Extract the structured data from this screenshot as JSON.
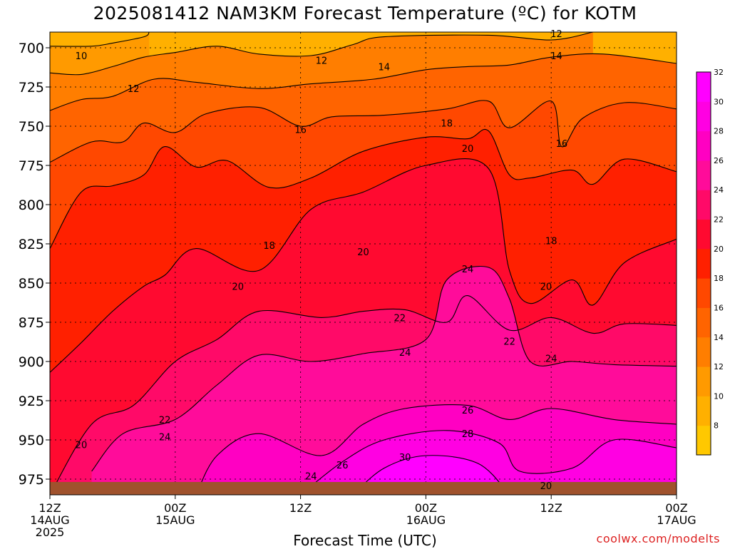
{
  "title": "2025081412 NAM3KM Forecast Temperature (ºC) for KOTM",
  "credit": "coolwx.com/modelts",
  "chart_data": {
    "type": "contour",
    "xlabel": "Forecast Time (UTC)",
    "ylabel": "",
    "ylim": [
      985,
      690
    ],
    "y_ticks": [
      {
        "value": 700,
        "label": "700"
      },
      {
        "value": 725,
        "label": "725"
      },
      {
        "value": 750,
        "label": "750"
      },
      {
        "value": 775,
        "label": "775"
      },
      {
        "value": 800,
        "label": "800"
      },
      {
        "value": 825,
        "label": "825"
      },
      {
        "value": 850,
        "label": "850"
      },
      {
        "value": 875,
        "label": "875"
      },
      {
        "value": 900,
        "label": "900"
      },
      {
        "value": 925,
        "label": "925"
      },
      {
        "value": 950,
        "label": "950"
      },
      {
        "value": 975,
        "label": "975"
      }
    ],
    "xlim": [
      0,
      60
    ],
    "x_ticks": [
      {
        "hour": 0,
        "lines": [
          "12Z",
          "14AUG",
          "2025"
        ]
      },
      {
        "hour": 12,
        "lines": [
          "00Z",
          "15AUG"
        ]
      },
      {
        "hour": 24,
        "lines": [
          "12Z"
        ]
      },
      {
        "hour": 36,
        "lines": [
          "00Z",
          "16AUG"
        ]
      },
      {
        "hour": 48,
        "lines": [
          "12Z"
        ]
      },
      {
        "hour": 60,
        "lines": [
          "00Z",
          "17AUG"
        ]
      }
    ],
    "levels": [
      8,
      10,
      12,
      14,
      16,
      18,
      20,
      22,
      24,
      26,
      28,
      30,
      32
    ],
    "colorbar": [
      {
        "value": 6,
        "color": "#ffc800"
      },
      {
        "value": 8,
        "color": "#ffb000"
      },
      {
        "value": 10,
        "color": "#ff9a00"
      },
      {
        "value": 12,
        "color": "#ff7e00"
      },
      {
        "value": 14,
        "color": "#ff6400"
      },
      {
        "value": 16,
        "color": "#ff4800"
      },
      {
        "value": 18,
        "color": "#ff2000"
      },
      {
        "value": 20,
        "color": "#ff0a30"
      },
      {
        "value": 22,
        "color": "#ff0a68"
      },
      {
        "value": 24,
        "color": "#ff0c9a"
      },
      {
        "value": 26,
        "color": "#ff00c2"
      },
      {
        "value": 28,
        "color": "#ff00e2"
      },
      {
        "value": 30,
        "color": "#ff00ff"
      }
    ],
    "colorbar_labels": [
      "8",
      "10",
      "12",
      "14",
      "16",
      "18",
      "20",
      "22",
      "24",
      "26",
      "28",
      "30",
      "32"
    ],
    "isotherms": [
      {
        "level": 10,
        "points": [
          [
            0,
            699
          ],
          [
            4,
            699
          ],
          [
            6,
            697
          ],
          [
            9,
            693
          ],
          [
            9.5,
            690
          ]
        ]
      },
      {
        "level": 12,
        "points": [
          [
            0,
            716
          ],
          [
            3,
            717
          ],
          [
            6,
            712
          ],
          [
            9,
            706
          ],
          [
            12,
            703
          ],
          [
            16,
            699
          ],
          [
            20,
            704
          ],
          [
            25,
            705
          ],
          [
            29,
            698
          ],
          [
            32,
            693
          ],
          [
            42,
            692
          ],
          [
            48,
            695
          ],
          [
            52,
            690
          ]
        ]
      },
      {
        "level": 14,
        "points": [
          [
            0,
            740
          ],
          [
            3,
            733
          ],
          [
            6,
            731
          ],
          [
            10,
            720
          ],
          [
            14,
            722
          ],
          [
            20,
            726
          ],
          [
            25,
            723
          ],
          [
            31,
            720
          ],
          [
            36,
            714
          ],
          [
            40,
            712
          ],
          [
            44,
            711
          ],
          [
            48,
            706
          ],
          [
            53,
            704
          ],
          [
            60,
            710
          ]
        ]
      },
      {
        "level": 16,
        "points": [
          [
            0,
            773
          ],
          [
            4,
            760
          ],
          [
            7,
            760
          ],
          [
            9,
            748
          ],
          [
            12,
            754
          ],
          [
            15,
            742
          ],
          [
            20,
            738
          ],
          [
            24,
            750
          ],
          [
            27,
            744
          ],
          [
            32,
            743
          ],
          [
            38,
            739
          ],
          [
            42,
            734
          ],
          [
            44,
            751
          ],
          [
            48,
            734
          ],
          [
            49,
            763
          ],
          [
            51,
            745
          ],
          [
            55,
            735
          ],
          [
            60,
            739
          ]
        ]
      },
      {
        "level": 18,
        "points": [
          [
            0,
            828
          ],
          [
            3,
            792
          ],
          [
            6,
            788
          ],
          [
            9,
            781
          ],
          [
            11,
            763
          ],
          [
            14,
            776
          ],
          [
            17,
            772
          ],
          [
            21,
            789
          ],
          [
            25,
            783
          ],
          [
            30,
            766
          ],
          [
            36,
            757
          ],
          [
            40,
            758
          ],
          [
            42,
            753
          ],
          [
            44,
            781
          ],
          [
            46,
            783
          ],
          [
            50,
            778
          ],
          [
            52,
            787
          ],
          [
            55,
            771
          ],
          [
            60,
            779
          ]
        ]
      },
      {
        "level": 20,
        "points": [
          [
            0,
            907
          ],
          [
            3,
            888
          ],
          [
            6,
            868
          ],
          [
            9,
            852
          ],
          [
            11,
            845
          ],
          [
            14,
            828
          ],
          [
            20,
            842
          ],
          [
            25,
            803
          ],
          [
            30,
            792
          ],
          [
            36,
            775
          ],
          [
            42,
            777
          ],
          [
            44,
            842
          ],
          [
            46,
            863
          ],
          [
            50,
            848
          ],
          [
            52,
            864
          ],
          [
            55,
            837
          ],
          [
            60,
            822
          ]
        ]
      },
      {
        "level": 22,
        "points": [
          [
            0,
            985
          ],
          [
            4,
            940
          ],
          [
            8,
            928
          ],
          [
            12,
            900
          ],
          [
            16,
            886
          ],
          [
            20,
            868
          ],
          [
            26,
            872
          ],
          [
            30,
            868
          ],
          [
            34,
            867
          ],
          [
            38,
            875
          ],
          [
            40,
            858
          ],
          [
            44,
            880
          ],
          [
            48,
            872
          ],
          [
            52,
            882
          ],
          [
            55,
            876
          ],
          [
            60,
            877
          ]
        ]
      },
      {
        "level": 24,
        "points": [
          [
            4,
            970
          ],
          [
            7,
            946
          ],
          [
            12,
            937
          ],
          [
            16,
            915
          ],
          [
            20,
            896
          ],
          [
            25,
            900
          ],
          [
            30,
            895
          ],
          [
            36,
            886
          ],
          [
            38,
            848
          ],
          [
            42,
            840
          ],
          [
            44,
            860
          ],
          [
            46,
            900
          ],
          [
            50,
            900
          ],
          [
            54,
            902
          ],
          [
            60,
            903
          ]
        ]
      },
      {
        "level": 26,
        "points": [
          [
            14,
            985
          ],
          [
            16,
            960
          ],
          [
            20,
            946
          ],
          [
            26,
            960
          ],
          [
            30,
            940
          ],
          [
            34,
            930
          ],
          [
            40,
            928
          ],
          [
            44,
            937
          ],
          [
            48,
            930
          ],
          [
            54,
            937
          ],
          [
            60,
            940
          ]
        ]
      },
      {
        "level": 28,
        "points": [
          [
            24,
            985
          ],
          [
            28,
            964
          ],
          [
            32,
            950
          ],
          [
            38,
            944
          ],
          [
            43,
            952
          ],
          [
            45,
            970
          ],
          [
            50,
            968
          ],
          [
            54,
            950
          ],
          [
            60,
            955
          ]
        ]
      },
      {
        "level": 30,
        "points": [
          [
            29,
            985
          ],
          [
            32,
            968
          ],
          [
            36,
            960
          ],
          [
            41,
            965
          ],
          [
            44,
            985
          ]
        ]
      }
    ],
    "contour_labels": [
      {
        "x": 3,
        "y": 705,
        "text": "10"
      },
      {
        "x": 8,
        "y": 726,
        "text": "12"
      },
      {
        "x": 26,
        "y": 708,
        "text": "12"
      },
      {
        "x": 48.5,
        "y": 691,
        "text": "12"
      },
      {
        "x": 32,
        "y": 712,
        "text": "14"
      },
      {
        "x": 48.5,
        "y": 705,
        "text": "14"
      },
      {
        "x": 24,
        "y": 752,
        "text": "16"
      },
      {
        "x": 49,
        "y": 761,
        "text": "16"
      },
      {
        "x": 38,
        "y": 748,
        "text": "18"
      },
      {
        "x": 21,
        "y": 826,
        "text": "18"
      },
      {
        "x": 48,
        "y": 823,
        "text": "18"
      },
      {
        "x": 40,
        "y": 764,
        "text": "20"
      },
      {
        "x": 30,
        "y": 830,
        "text": "20"
      },
      {
        "x": 18,
        "y": 852,
        "text": "20"
      },
      {
        "x": 47.5,
        "y": 852,
        "text": "20"
      },
      {
        "x": 3,
        "y": 953,
        "text": "20"
      },
      {
        "x": 47.5,
        "y": 979,
        "text": "20"
      },
      {
        "x": 33.5,
        "y": 872,
        "text": "22"
      },
      {
        "x": 44,
        "y": 887,
        "text": "22"
      },
      {
        "x": 11,
        "y": 937,
        "text": "22"
      },
      {
        "x": 40,
        "y": 841,
        "text": "24"
      },
      {
        "x": 34,
        "y": 894,
        "text": "24"
      },
      {
        "x": 48,
        "y": 898,
        "text": "24"
      },
      {
        "x": 11,
        "y": 948,
        "text": "24"
      },
      {
        "x": 25,
        "y": 973,
        "text": "24"
      },
      {
        "x": 40,
        "y": 931,
        "text": "26"
      },
      {
        "x": 28,
        "y": 966,
        "text": "26"
      },
      {
        "x": 40,
        "y": 946,
        "text": "28"
      },
      {
        "x": 34,
        "y": 961,
        "text": "30"
      }
    ],
    "ground_color": "#a0522d"
  }
}
